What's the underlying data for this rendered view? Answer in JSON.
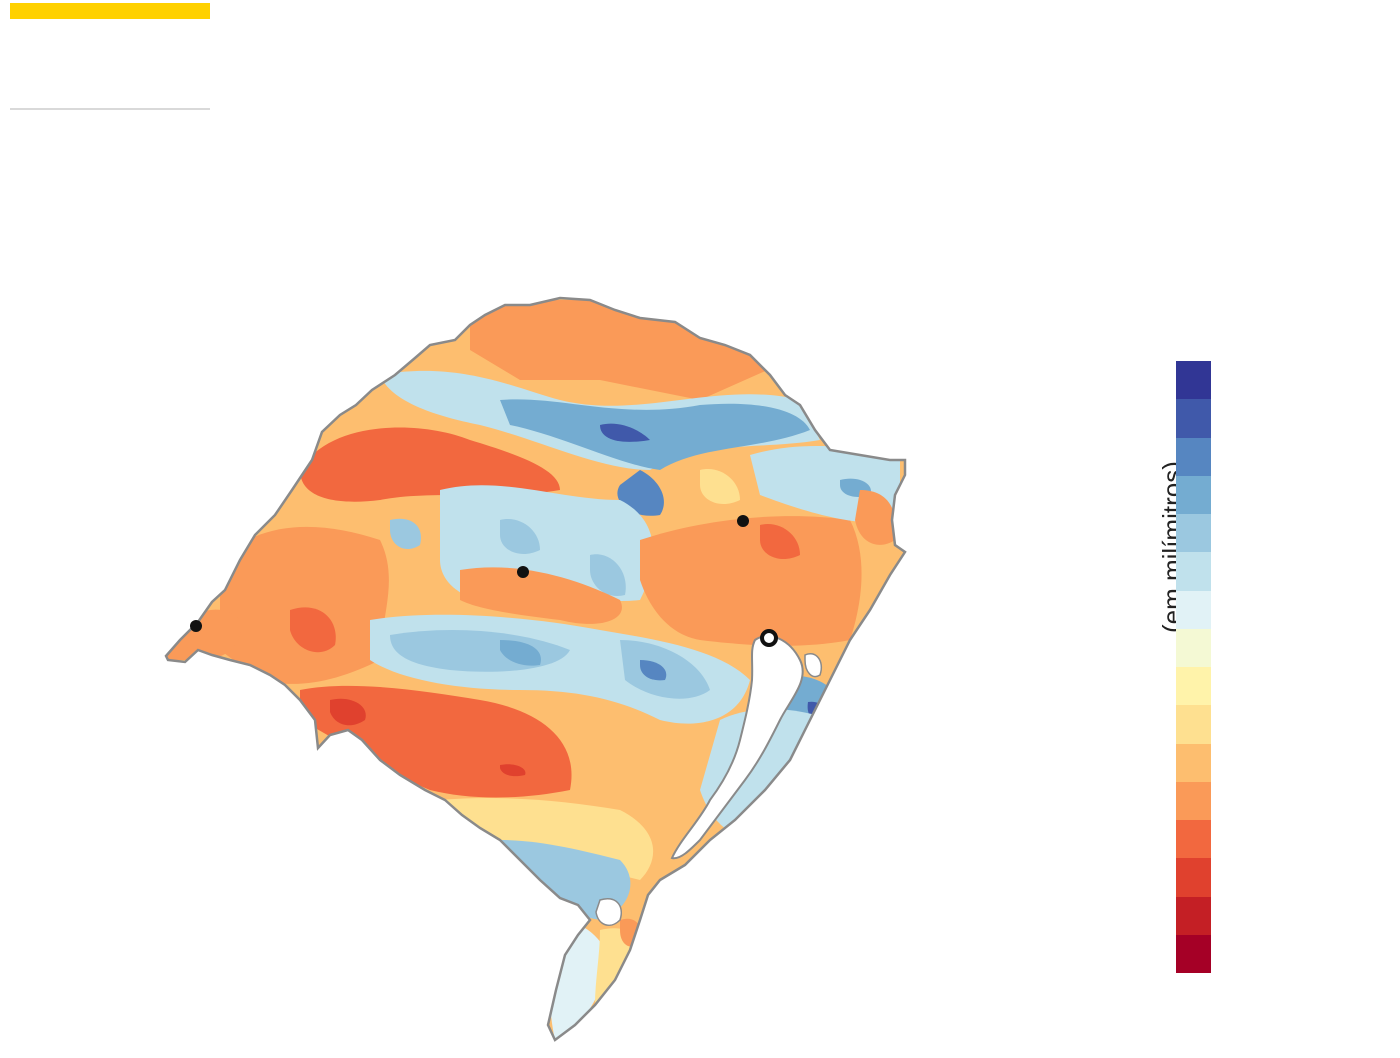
{
  "legend": {
    "title": "(em milímitros)",
    "colors": [
      "#313695",
      "#4059aa",
      "#5686c1",
      "#74acd1",
      "#9bc8e0",
      "#c0e1ec",
      "#e1f2f6",
      "#f4f9d4",
      "#fff3aa",
      "#fee090",
      "#fdbe6f",
      "#fa9a58",
      "#f2683f",
      "#e0412e",
      "#c41f25",
      "#a50026"
    ]
  },
  "theme": {
    "accent": "#ffd100",
    "outline": "#8a8a8a"
  },
  "markers": [
    {
      "name": "city-marker-west",
      "kind": "filled"
    },
    {
      "name": "city-marker-central",
      "kind": "filled"
    },
    {
      "name": "city-marker-northeast",
      "kind": "filled"
    },
    {
      "name": "city-marker-capital",
      "kind": "hollow"
    }
  ]
}
